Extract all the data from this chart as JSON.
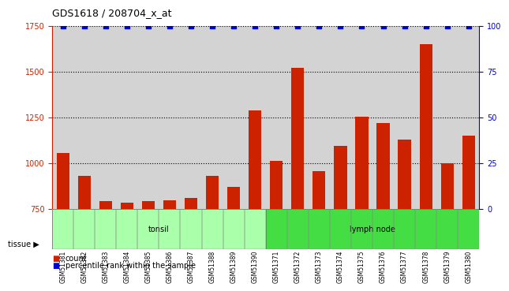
{
  "title": "GDS1618 / 208704_x_at",
  "categories": [
    "GSM51381",
    "GSM51382",
    "GSM51383",
    "GSM51384",
    "GSM51385",
    "GSM51386",
    "GSM51387",
    "GSM51388",
    "GSM51389",
    "GSM51390",
    "GSM51371",
    "GSM51372",
    "GSM51373",
    "GSM51374",
    "GSM51375",
    "GSM51376",
    "GSM51377",
    "GSM51378",
    "GSM51379",
    "GSM51380"
  ],
  "counts": [
    1055,
    930,
    790,
    785,
    790,
    795,
    810,
    930,
    870,
    1290,
    1010,
    1520,
    955,
    1095,
    1255,
    1220,
    1130,
    1650,
    1000,
    1150
  ],
  "percentile": [
    100,
    100,
    100,
    100,
    100,
    100,
    100,
    100,
    100,
    100,
    100,
    100,
    100,
    100,
    100,
    100,
    100,
    100,
    100,
    100
  ],
  "tissue_groups": [
    {
      "label": "tonsil",
      "start": 0,
      "end": 10,
      "color": "#aaffaa"
    },
    {
      "label": "lymph node",
      "start": 10,
      "end": 20,
      "color": "#44dd44"
    }
  ],
  "bar_color": "#cc2200",
  "dot_color": "#0000cc",
  "ylim_left": [
    750,
    1750
  ],
  "ylim_right": [
    0,
    100
  ],
  "yticks_left": [
    750,
    1000,
    1250,
    1500,
    1750
  ],
  "yticks_right": [
    0,
    25,
    50,
    75,
    100
  ],
  "grid_color": "#000000",
  "bg_color": "#d3d3d3",
  "legend_count_color": "#cc2200",
  "legend_dot_color": "#0000cc",
  "legend_count_label": "count",
  "legend_dot_label": "percentile rank within the sample",
  "tissue_label": "tissue",
  "xlabel_color": "#000000",
  "left_axis_color": "#cc2200",
  "right_axis_color": "#0000cc"
}
